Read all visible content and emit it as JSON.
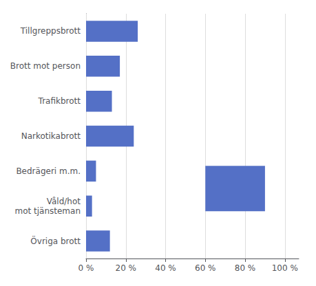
{
  "chart_data": {
    "type": "bar",
    "orientation": "horizontal",
    "categories": [
      "Tillgreppsbrott",
      "Brott mot person",
      "Trafikbrott",
      "Narkotikabrott",
      "Bedrägeri m.m.",
      "Våld/hot\nmot tjänsteman",
      "Övriga brott"
    ],
    "values": [
      26,
      17,
      13,
      24,
      5,
      3,
      12
    ],
    "range_bar": {
      "categories": [
        "Bedrägeri m.m.",
        "Våld/hot\nmot tjänsteman"
      ],
      "from": 60,
      "to": 90
    },
    "color": "#5470c6",
    "xlim": [
      0,
      107
    ],
    "xticks": [
      {
        "value": 0,
        "label": "0 %"
      },
      {
        "value": 20,
        "label": "20 %"
      },
      {
        "value": 40,
        "label": "40 %"
      },
      {
        "value": 60,
        "label": "60 %"
      },
      {
        "value": 80,
        "label": "80 %"
      },
      {
        "value": 100,
        "label": "100 %"
      }
    ],
    "grid": true
  }
}
